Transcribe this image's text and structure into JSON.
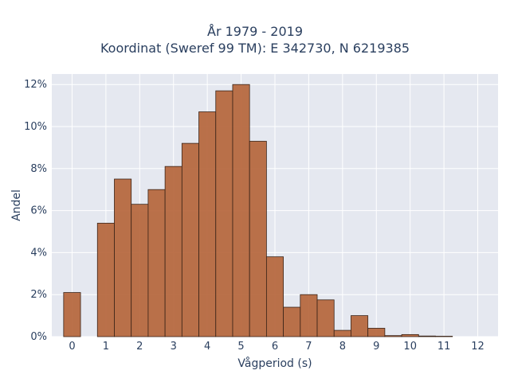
{
  "chart_data": {
    "type": "bar",
    "title_line1": "År 1979 - 2019",
    "title_line2": "Koordinat (Sweref 99 TM): E 342730, N 6219385",
    "xlabel": "Vågperiod (s)",
    "ylabel": "Andel",
    "x_ticks": [
      "0",
      "1",
      "2",
      "3",
      "4",
      "5",
      "6",
      "7",
      "8",
      "9",
      "10",
      "11",
      "12"
    ],
    "y_ticks": [
      "0%",
      "2%",
      "4%",
      "6%",
      "8%",
      "10%",
      "12%"
    ],
    "xlim": [
      -0.6,
      12.6
    ],
    "ylim": [
      0,
      12.5
    ],
    "bin_width": 0.5,
    "bins": [
      {
        "x": 0.0,
        "y": 2.1
      },
      {
        "x": 1.0,
        "y": 5.4
      },
      {
        "x": 1.5,
        "y": 7.5
      },
      {
        "x": 2.0,
        "y": 6.3
      },
      {
        "x": 2.5,
        "y": 7.0
      },
      {
        "x": 3.0,
        "y": 8.1
      },
      {
        "x": 3.5,
        "y": 9.2
      },
      {
        "x": 4.0,
        "y": 10.7
      },
      {
        "x": 4.5,
        "y": 11.7
      },
      {
        "x": 5.0,
        "y": 12.0
      },
      {
        "x": 5.5,
        "y": 9.3
      },
      {
        "x": 6.0,
        "y": 3.8
      },
      {
        "x": 6.5,
        "y": 1.4
      },
      {
        "x": 7.0,
        "y": 2.0
      },
      {
        "x": 7.5,
        "y": 1.75
      },
      {
        "x": 8.0,
        "y": 0.3
      },
      {
        "x": 8.5,
        "y": 1.0
      },
      {
        "x": 9.0,
        "y": 0.4
      },
      {
        "x": 9.5,
        "y": 0.05
      },
      {
        "x": 10.0,
        "y": 0.1
      },
      {
        "x": 10.5,
        "y": 0.03
      },
      {
        "x": 11.0,
        "y": 0.02
      }
    ],
    "grid": true,
    "colors": {
      "bar_fill": "#b5653b",
      "bar_edge": "#3a2418",
      "plot_bg": "#e5e8f0",
      "grid": "#ffffff"
    }
  }
}
